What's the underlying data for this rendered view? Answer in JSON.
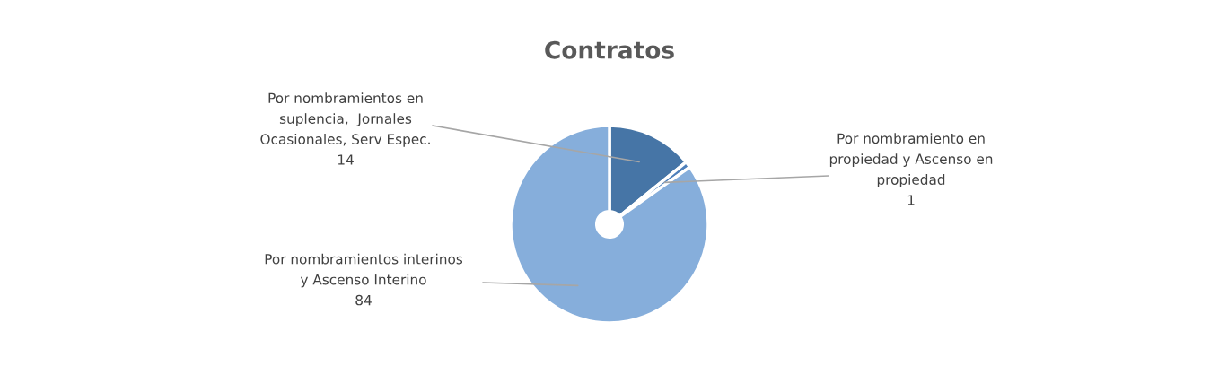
{
  "chart_data": {
    "type": "donut",
    "title": "Contratos",
    "categories": [
      "Por nombramientos en suplencia,  Jornales Ocasionales, Serv Espec.",
      "Por nombramiento en propiedad y Ascenso en propiedad",
      "Por nombramientos interinos y Ascenso Interino"
    ],
    "values": [
      14,
      1,
      84
    ],
    "colors": [
      "#4675a6",
      "#4e80bb",
      "#86aedb"
    ],
    "data_labels": true,
    "legend": false
  }
}
